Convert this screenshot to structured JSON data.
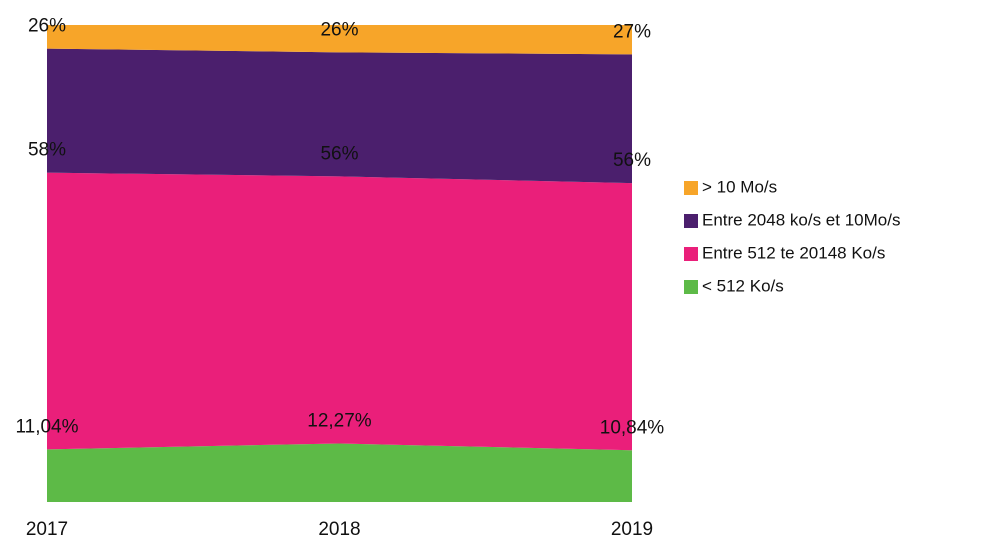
{
  "chart_data": {
    "type": "stacked_area",
    "categories": [
      "2017",
      "2018",
      "2019"
    ],
    "ylim": [
      0,
      100
    ],
    "series": [
      {
        "name": "< 512 Ko/s",
        "color": "#5dba47",
        "values": [
          11.04,
          12.27,
          10.84
        ],
        "value_labels": [
          "11,04%",
          "12,27%",
          "10,84%"
        ]
      },
      {
        "name": "Entre 512 te 20148 Ko/s",
        "color": "#ea1f7a",
        "values": [
          58,
          56,
          56
        ],
        "value_labels": [
          "58%",
          "56%",
          "56%"
        ]
      },
      {
        "name": "Entre 2048 ko/s et 10Mo/s",
        "color": "#4b1f6d",
        "values": [
          26,
          26,
          27
        ],
        "value_labels": [
          "26%",
          "26%",
          "27%"
        ]
      },
      {
        "name": "> 10 Mo/s",
        "color": "#f7a529",
        "values": [
          4.96,
          5.73,
          6.16
        ]
      }
    ],
    "legend": "right"
  }
}
